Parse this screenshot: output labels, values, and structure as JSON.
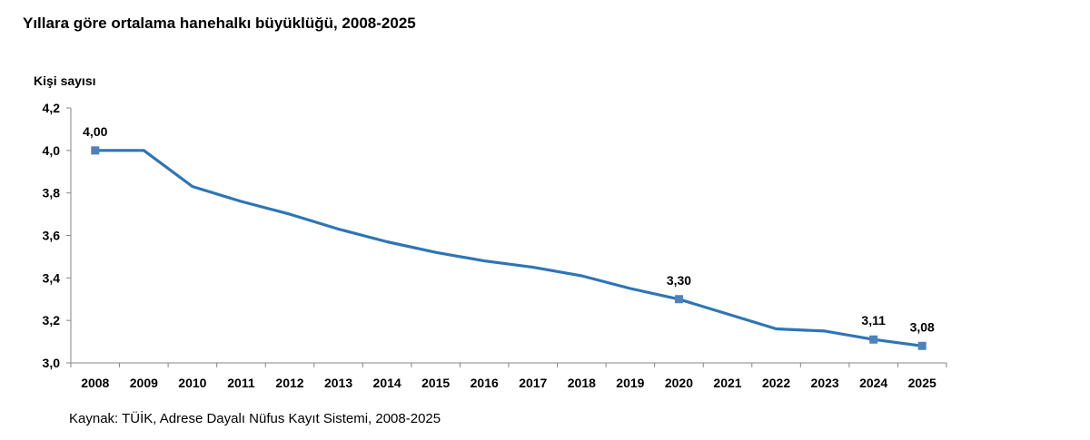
{
  "title": "Yıllara göre ortalama hanehalkı büyüklüğü, 2008-2025",
  "source": "Kaynak: TÜİK, Adrese Dayalı Nüfus Kayıt Sistemi, 2008-2025",
  "colors": {
    "line": "#2e75b6",
    "marker": "#4f81bd",
    "axis": "#868686"
  },
  "chart_data": {
    "type": "line",
    "title": "Yıllara göre ortalama hanehalkı büyüklüğü, 2008-2025",
    "xlabel": "",
    "ylabel": "Kişi sayısı",
    "categories": [
      "2008",
      "2009",
      "2010",
      "2011",
      "2012",
      "2013",
      "2014",
      "2015",
      "2016",
      "2017",
      "2018",
      "2019",
      "2020",
      "2021",
      "2022",
      "2023",
      "2024",
      "2025"
    ],
    "series": [
      {
        "values": [
          4.0,
          4.0,
          3.83,
          3.76,
          3.7,
          3.63,
          3.57,
          3.52,
          3.48,
          3.45,
          3.41,
          3.35,
          3.3,
          3.23,
          3.16,
          3.15,
          3.11,
          3.08
        ]
      }
    ],
    "ylim": [
      3.0,
      4.2
    ],
    "yticks": [
      "3,0",
      "3,2",
      "3,4",
      "3,6",
      "3,8",
      "4,0",
      "4,2"
    ],
    "data_labels": [
      {
        "category": "2008",
        "value": 4.0,
        "text": "4,00"
      },
      {
        "category": "2020",
        "value": 3.3,
        "text": "3,30"
      },
      {
        "category": "2024",
        "value": 3.11,
        "text": "3,11"
      },
      {
        "category": "2025",
        "value": 3.08,
        "text": "3,08"
      }
    ],
    "grid": false,
    "legend": "none"
  }
}
